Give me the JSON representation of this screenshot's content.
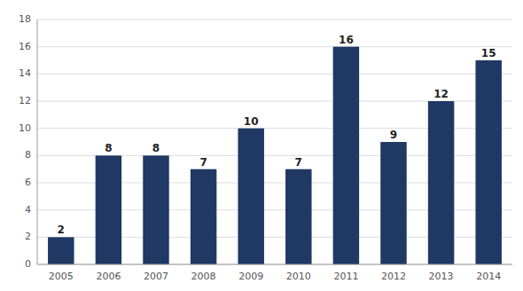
{
  "chart_data": {
    "type": "bar",
    "categories": [
      "2005",
      "2006",
      "2007",
      "2008",
      "2009",
      "2010",
      "2011",
      "2012",
      "2013",
      "2014"
    ],
    "values": [
      2,
      8,
      8,
      7,
      10,
      7,
      16,
      9,
      12,
      15
    ],
    "color": "#1F3864",
    "ylim": [
      0,
      18
    ],
    "yticks": [
      0,
      2,
      4,
      6,
      8,
      10,
      12,
      14,
      16,
      18
    ],
    "grid": true,
    "data_labels": true
  }
}
